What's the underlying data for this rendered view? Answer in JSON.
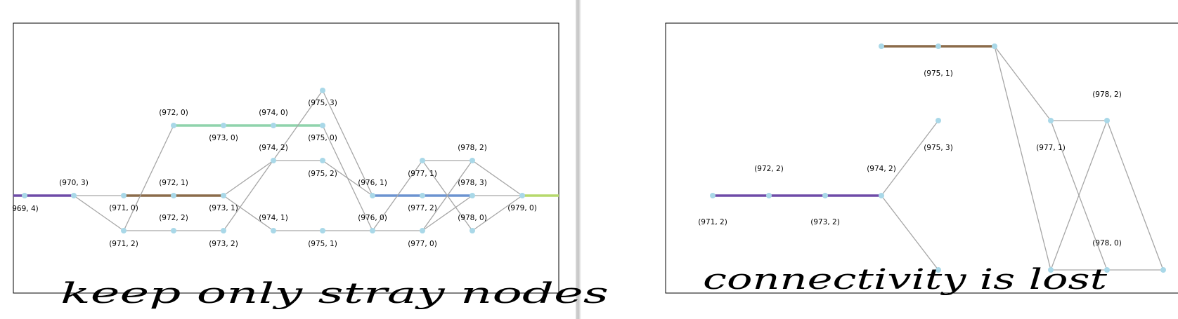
{
  "colors": {
    "purple": "#6f4ba8",
    "brown": "#8b6b4a",
    "mint": "#8fd3ac",
    "blue": "#6b93d0",
    "lime": "#b6d96b",
    "node": "#a9d8e8",
    "edge": "#a6a6a6"
  },
  "panels": [
    {
      "id": "left",
      "annotation": "keep only stray nodes",
      "labels": [
        "969, 4)",
        "(970, 3)",
        "(971, 0)",
        "(971, 2)",
        "(972, 0)",
        "(972, 1)",
        "(972, 2)",
        "(973, 0)",
        "(973, 1)",
        "(973, 2)",
        "(974, 0)",
        "(974, 2)",
        "(974, 1)",
        "(975, 3)",
        "(975, 0)",
        "(975, 2)",
        "(975, 1)",
        "(976, 1)",
        "(976, 0)",
        "(977, 1)",
        "(977, 2)",
        "(977, 0)",
        "(978, 2)",
        "(978, 3)",
        "(978, 0)",
        "(979, 0)"
      ]
    },
    {
      "id": "right",
      "annotation": "connectivity is lost",
      "labels": [
        "(975, 1)",
        "(978, 2)",
        "(975, 3)",
        "(977, 1)",
        "(972, 2)",
        "(974, 2)",
        "(971, 2)",
        "(973, 2)",
        "(978, 0)"
      ]
    }
  ]
}
